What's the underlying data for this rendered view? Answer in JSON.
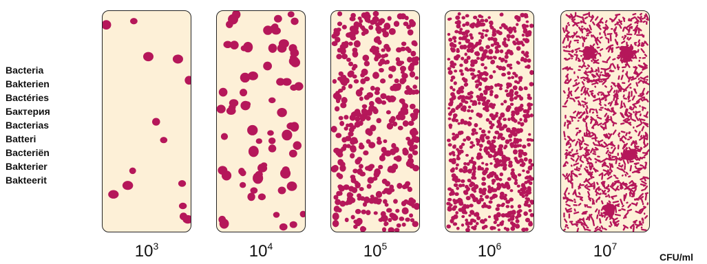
{
  "colors": {
    "background": "#fdf0d7",
    "bacteria": "#b5175a",
    "border": "#222222"
  },
  "labels": [
    "Bacteria",
    "Bakterien",
    "Bactéries",
    "Бактерия",
    "Bacterias",
    "Batteri",
    "Bacteriën",
    "Bakterier",
    "Bakteerit"
  ],
  "unit": "CFU/ml",
  "panels": [
    {
      "base": "10",
      "exp": "3",
      "density": "very low",
      "count": 14,
      "kind": "colony"
    },
    {
      "base": "10",
      "exp": "4",
      "density": "low",
      "count": 75,
      "kind": "colony"
    },
    {
      "base": "10",
      "exp": "5",
      "density": "medium",
      "count": 430,
      "kind": "colony"
    },
    {
      "base": "10",
      "exp": "6",
      "density": "high",
      "count": 900,
      "kind": "colony"
    },
    {
      "base": "10",
      "exp": "7",
      "density": "very high",
      "count": 1100,
      "kind": "rod"
    }
  ]
}
